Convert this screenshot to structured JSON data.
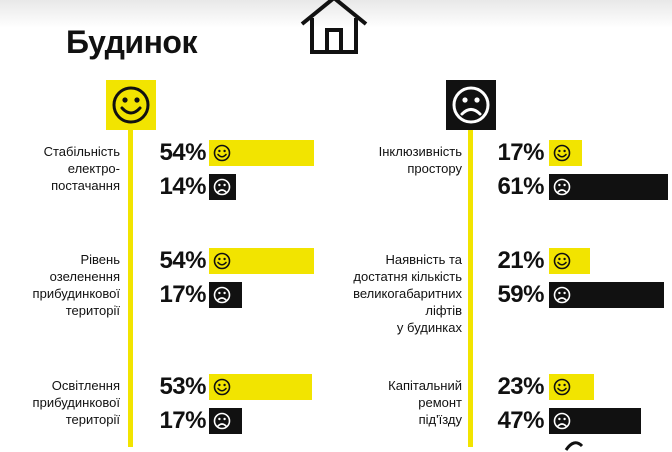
{
  "title": "Будинок",
  "icons": {
    "house": "house-icon",
    "happy": "smile-face-icon",
    "sad": "sad-face-icon"
  },
  "colors": {
    "positive": "#f2e400",
    "negative": "#111111",
    "text": "#111111"
  },
  "chart_data": {
    "type": "bar",
    "title": "Будинок",
    "series": [
      {
        "icon": "smile-face-icon",
        "color": "#f2e400"
      },
      {
        "icon": "sad-face-icon",
        "color": "#111111"
      }
    ],
    "items": [
      {
        "label": [
          "Стабільність",
          "електро-",
          "постачання"
        ],
        "positive": 54,
        "negative": 14,
        "pos_text": "54%",
        "neg_text": "14%"
      },
      {
        "label": [
          "Рівень",
          "озеленення",
          "прибудинкової",
          "території"
        ],
        "positive": 54,
        "negative": 17,
        "pos_text": "54%",
        "neg_text": "17%"
      },
      {
        "label": [
          "Освітлення",
          "прибудинкової",
          "території"
        ],
        "positive": 53,
        "negative": 17,
        "pos_text": "53%",
        "neg_text": "17%"
      },
      {
        "label": [
          "Інклюзивність",
          "простору"
        ],
        "positive": 17,
        "negative": 61,
        "pos_text": "17%",
        "neg_text": "61%"
      },
      {
        "label": [
          "Наявність та",
          "достатня кількість",
          "великогабаритних",
          "ліфтів",
          "у будинках"
        ],
        "positive": 21,
        "negative": 59,
        "pos_text": "21%",
        "neg_text": "59%"
      },
      {
        "label": [
          "Капітальний",
          "ремонт",
          "під'їзду"
        ],
        "positive": 23,
        "negative": 47,
        "pos_text": "23%",
        "neg_text": "47%"
      }
    ]
  }
}
